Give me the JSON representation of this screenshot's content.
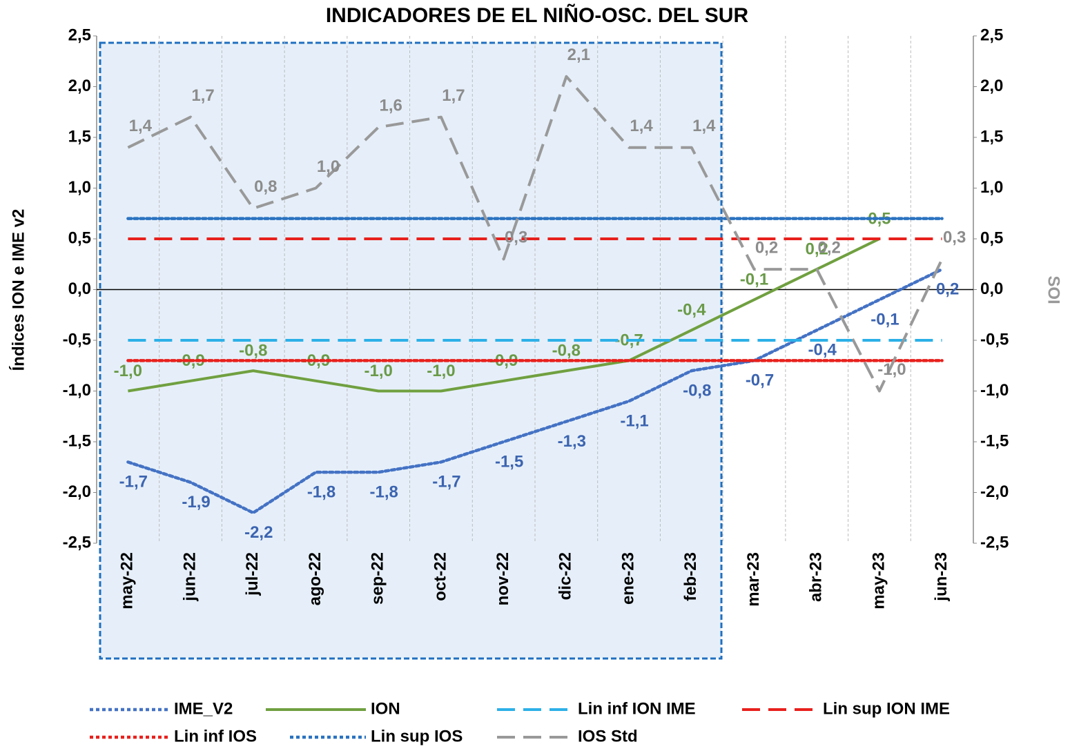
{
  "chart_data": {
    "type": "line",
    "title": "INDICADORES DE EL NIÑO-OSC. DEL SUR",
    "y_label": "Índices ION e IME v2",
    "y2_label": "SOI",
    "categories": [
      "may-22",
      "jun-22",
      "jul-22",
      "ago-22",
      "sep-22",
      "oct-22",
      "nov-22",
      "dic-22",
      "ene-23",
      "feb-23",
      "mar-23",
      "abr-23",
      "may-23",
      "jun-23"
    ],
    "series": [
      {
        "name": "IME_V2",
        "color": "#4472c4",
        "style": "dotted",
        "values": [
          -1.7,
          -1.9,
          -2.2,
          -1.8,
          -1.8,
          -1.7,
          -1.5,
          -1.3,
          -1.1,
          -0.8,
          -0.7,
          -0.4,
          -0.1,
          0.2
        ],
        "value_labels": [
          "-1,7",
          "-1,9",
          "-2,2",
          "-1,8",
          "-1,8",
          "-1,7",
          "-1,5",
          "-1,3",
          "-1,1",
          "-0,8",
          "-0,7",
          "-0,4",
          "-0,1",
          "0,2"
        ]
      },
      {
        "name": "ION",
        "color": "#70a040",
        "style": "solid",
        "values": [
          -1.0,
          -0.9,
          -0.8,
          -0.9,
          -1.0,
          -1.0,
          -0.9,
          -0.8,
          -0.7,
          -0.4,
          -0.1,
          0.2,
          0.5,
          null
        ],
        "value_labels": [
          "-1,0",
          "-0,9",
          "-0,8",
          "-0,9",
          "-1,0",
          "-1,0",
          "-0,9",
          "-0,8",
          "-0,7",
          "-0,4",
          "-0,1",
          "0,2",
          "0,5",
          null
        ]
      },
      {
        "name": "Lin inf ION IME",
        "color": "#2cb0e8",
        "style": "dashed",
        "values": [
          -0.5,
          -0.5,
          -0.5,
          -0.5,
          -0.5,
          -0.5,
          -0.5,
          -0.5,
          -0.5,
          -0.5,
          -0.5,
          -0.5,
          -0.5,
          -0.5
        ]
      },
      {
        "name": "Lin sup ION IME",
        "color": "#e8201c",
        "style": "dashed",
        "values": [
          0.5,
          0.5,
          0.5,
          0.5,
          0.5,
          0.5,
          0.5,
          0.5,
          0.5,
          0.5,
          0.5,
          0.5,
          0.5,
          0.5
        ]
      },
      {
        "name": "Lin inf IOS",
        "color": "#e8201c",
        "style": "dotted",
        "values": [
          -0.7,
          -0.7,
          -0.7,
          -0.7,
          -0.7,
          -0.7,
          -0.7,
          -0.7,
          -0.7,
          -0.7,
          -0.7,
          -0.7,
          -0.7,
          -0.7
        ]
      },
      {
        "name": "Lin sup IOS",
        "color": "#2a72c0",
        "style": "dotted",
        "values": [
          0.7,
          0.7,
          0.7,
          0.7,
          0.7,
          0.7,
          0.7,
          0.7,
          0.7,
          0.7,
          0.7,
          0.7,
          0.7,
          0.7
        ]
      },
      {
        "name": "IOS Std",
        "color": "#999999",
        "style": "dashed",
        "axis": "y2",
        "values": [
          1.4,
          1.7,
          0.8,
          1.0,
          1.6,
          1.7,
          0.3,
          2.1,
          1.4,
          1.4,
          0.2,
          0.2,
          -1.0,
          0.3
        ],
        "value_labels": [
          "1,4",
          "1,7",
          "0,8",
          "1,0",
          "1,6",
          "1,7",
          "0,3",
          "2,1",
          "1,4",
          "1,4",
          "0,2",
          "0,2",
          "-1,0",
          "0,3"
        ]
      }
    ],
    "ylim": [
      -2.5,
      2.5
    ],
    "yticks": [
      {
        "value": 2.5,
        "label": "2,5"
      },
      {
        "value": 2.0,
        "label": "2,0"
      },
      {
        "value": 1.5,
        "label": "1,5"
      },
      {
        "value": 1.0,
        "label": "1,0"
      },
      {
        "value": 0.5,
        "label": "0,5"
      },
      {
        "value": 0,
        "label": "0,0"
      },
      {
        "value": -0.5,
        "label": "-0,5"
      },
      {
        "value": -1.0,
        "label": "-1,0"
      },
      {
        "value": -1.5,
        "label": "-1,5"
      },
      {
        "value": -2.0,
        "label": "-2,0"
      },
      {
        "value": -2.5,
        "label": "-2,5"
      }
    ],
    "y2lim": [
      -2.5,
      2.5
    ],
    "y2ticks": [
      {
        "value": 2.5,
        "label": "2,5"
      },
      {
        "value": 2.0,
        "label": "2,0"
      },
      {
        "value": 1.5,
        "label": "1,5"
      },
      {
        "value": 1.0,
        "label": "1,0"
      },
      {
        "value": 0.5,
        "label": "0,5"
      },
      {
        "value": 0,
        "label": "0,0"
      },
      {
        "value": -0.5,
        "label": "-0,5"
      },
      {
        "value": -1.0,
        "label": "-1,0"
      },
      {
        "value": -1.5,
        "label": "-1,5"
      },
      {
        "value": -2.0,
        "label": "-2,0"
      },
      {
        "value": -2.5,
        "label": "-2,5"
      }
    ],
    "legend": "bottom"
  }
}
